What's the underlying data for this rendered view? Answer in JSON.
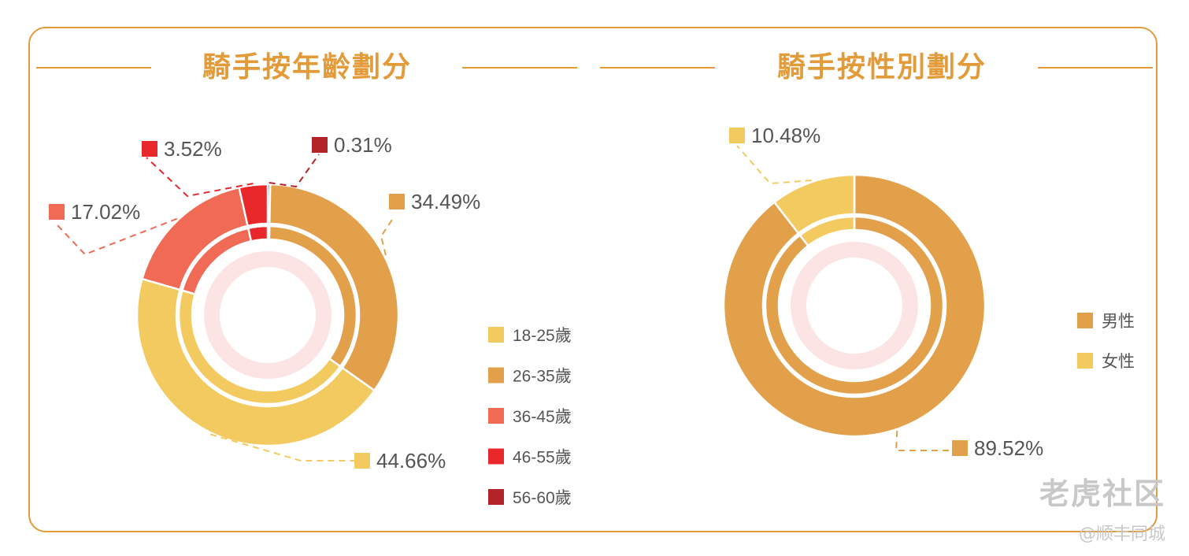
{
  "titles": {
    "age": "騎手按年齡劃分",
    "gender": "騎手按性別劃分"
  },
  "colors": {
    "frame": "#E39B3A",
    "inner_ring": "#FCE4E4"
  },
  "chart_data": [
    {
      "type": "pie",
      "title": "騎手按年齡劃分",
      "style": "double-donut",
      "legend_position": "right",
      "categories": [
        "18-25歲",
        "26-35歲",
        "36-45歲",
        "46-55歲",
        "56-60歲"
      ],
      "values": [
        44.66,
        34.49,
        17.02,
        3.52,
        0.31
      ],
      "labels": [
        "44.66%",
        "34.49%",
        "17.02%",
        "3.52%",
        "0.31%"
      ],
      "colors": [
        "#F2CA60",
        "#E3A04B",
        "#F06A55",
        "#E8282B",
        "#B3232A"
      ]
    },
    {
      "type": "pie",
      "title": "騎手按性別劃分",
      "style": "double-donut",
      "legend_position": "right",
      "categories": [
        "男性",
        "女性"
      ],
      "values": [
        89.52,
        10.48
      ],
      "labels": [
        "89.52%",
        "10.48%"
      ],
      "colors": [
        "#E3A04B",
        "#F2CA60"
      ]
    }
  ],
  "watermark": {
    "brand": "老虎社区",
    "handle": "@顺丰同城"
  }
}
